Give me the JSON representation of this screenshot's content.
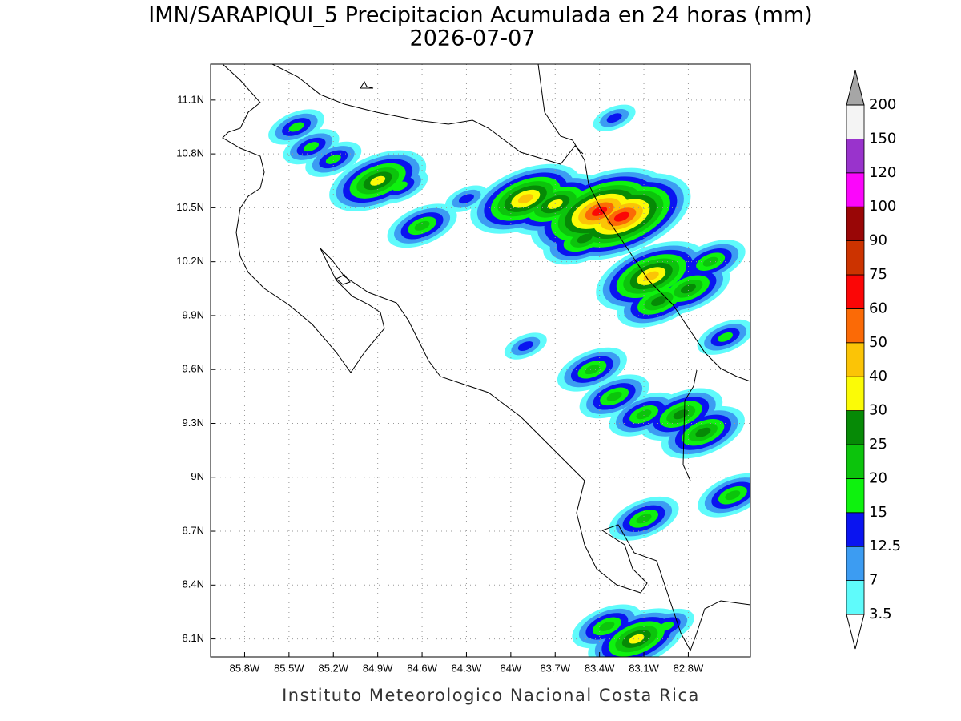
{
  "map": {
    "type": "filled-contour",
    "title": "IMN/SARAPIQUI_5 Precipitacion Acumulada en 24 horas (mm)",
    "subtitle": "2026-07-07",
    "footer": "Instituto Meteorologico Nacional Costa Rica",
    "xlim": [
      -86.03,
      -82.38
    ],
    "ylim": [
      8.0,
      11.3
    ],
    "xticks": [
      {
        "value": -85.8,
        "label": "85.8W"
      },
      {
        "value": -85.5,
        "label": "85.5W"
      },
      {
        "value": -85.2,
        "label": "85.2W"
      },
      {
        "value": -84.9,
        "label": "84.9W"
      },
      {
        "value": -84.6,
        "label": "84.6W"
      },
      {
        "value": -84.3,
        "label": "84.3W"
      },
      {
        "value": -84.0,
        "label": "84W"
      },
      {
        "value": -83.7,
        "label": "83.7W"
      },
      {
        "value": -83.4,
        "label": "83.4W"
      },
      {
        "value": -83.1,
        "label": "83.1W"
      },
      {
        "value": -82.8,
        "label": "82.8W"
      }
    ],
    "yticks": [
      {
        "value": 11.1,
        "label": "11.1N"
      },
      {
        "value": 10.8,
        "label": "10.8N"
      },
      {
        "value": 10.5,
        "label": "10.5N"
      },
      {
        "value": 10.2,
        "label": "10.2N"
      },
      {
        "value": 9.9,
        "label": "9.9N"
      },
      {
        "value": 9.6,
        "label": "9.6N"
      },
      {
        "value": 9.3,
        "label": "9.3N"
      },
      {
        "value": 9.0,
        "label": "9N"
      },
      {
        "value": 8.7,
        "label": "8.7N"
      },
      {
        "value": 8.4,
        "label": "8.4N"
      },
      {
        "value": 8.1,
        "label": "8.1N"
      }
    ],
    "grid": true,
    "colorbar": {
      "levels": [
        3.5,
        7,
        12.5,
        15,
        20,
        25,
        30,
        40,
        50,
        60,
        75,
        90,
        100,
        120,
        150,
        200
      ],
      "colors": [
        "#5ffbfb",
        "#3c9cf2",
        "#0a14f0",
        "#0ef20e",
        "#0cc40c",
        "#068a06",
        "#fbfb06",
        "#fbc406",
        "#fb6a06",
        "#fb0606",
        "#cc3300",
        "#990606",
        "#fb06fb",
        "#9933cc",
        "#f4f4f4"
      ],
      "under_color": "#ffffff",
      "over_color": "#a6a6a6"
    },
    "cells": [
      {
        "lon": -85.45,
        "lat": 10.95,
        "value": 15
      },
      {
        "lon": -85.35,
        "lat": 10.84,
        "value": 15
      },
      {
        "lon": -85.2,
        "lat": 10.77,
        "value": 15
      },
      {
        "lon": -84.9,
        "lat": 10.65,
        "value": 35
      },
      {
        "lon": -84.75,
        "lat": 10.62,
        "value": 15
      },
      {
        "lon": -84.6,
        "lat": 10.4,
        "value": 20
      },
      {
        "lon": -84.3,
        "lat": 10.55,
        "value": 12.5
      },
      {
        "lon": -83.9,
        "lat": 10.55,
        "value": 40
      },
      {
        "lon": -83.7,
        "lat": 10.52,
        "value": 30
      },
      {
        "lon": -83.4,
        "lat": 10.48,
        "value": 60
      },
      {
        "lon": -83.25,
        "lat": 10.45,
        "value": 60
      },
      {
        "lon": -83.5,
        "lat": 10.33,
        "value": 25
      },
      {
        "lon": -83.3,
        "lat": 11.0,
        "value": 12.5
      },
      {
        "lon": -83.05,
        "lat": 10.12,
        "value": 40
      },
      {
        "lon": -82.8,
        "lat": 10.05,
        "value": 25
      },
      {
        "lon": -82.65,
        "lat": 10.2,
        "value": 20
      },
      {
        "lon": -83.0,
        "lat": 9.98,
        "value": 25
      },
      {
        "lon": -82.55,
        "lat": 9.78,
        "value": 15
      },
      {
        "lon": -83.9,
        "lat": 9.73,
        "value": 12.5
      },
      {
        "lon": -83.45,
        "lat": 9.6,
        "value": 20
      },
      {
        "lon": -83.3,
        "lat": 9.45,
        "value": 20
      },
      {
        "lon": -83.1,
        "lat": 9.35,
        "value": 20
      },
      {
        "lon": -82.85,
        "lat": 9.35,
        "value": 25
      },
      {
        "lon": -82.7,
        "lat": 9.25,
        "value": 25
      },
      {
        "lon": -82.5,
        "lat": 8.9,
        "value": 20
      },
      {
        "lon": -83.1,
        "lat": 8.77,
        "value": 20
      },
      {
        "lon": -83.35,
        "lat": 8.17,
        "value": 20
      },
      {
        "lon": -83.15,
        "lat": 8.1,
        "value": 30
      },
      {
        "lon": -82.95,
        "lat": 8.17,
        "value": 15
      }
    ]
  }
}
